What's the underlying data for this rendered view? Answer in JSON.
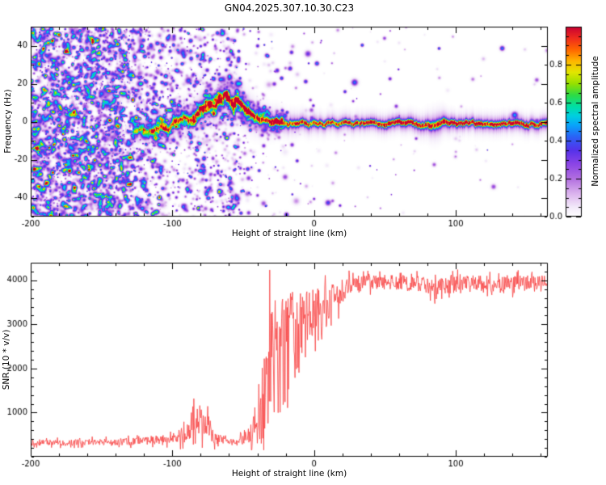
{
  "title": "GN04.2025.307.10.30.C23",
  "chart_data": [
    {
      "type": "heatmap",
      "xlabel": "Height of straight line (km)",
      "ylabel": "Frequency (Hz)",
      "xlim": [
        -200,
        165
      ],
      "ylim": [
        -50,
        50
      ],
      "xticks": [
        -200,
        -100,
        0,
        100
      ],
      "xtick_labels": [
        "-200",
        "-100",
        "0",
        "100"
      ],
      "yticks": [
        -40,
        -20,
        0,
        20,
        40
      ],
      "ytick_labels": [
        "-40",
        "-20",
        "0",
        "20",
        "40"
      ],
      "x_minor_step": 20,
      "y_minor_step": 10,
      "colorbar": {
        "label": "Normalized spectral amplitude",
        "range": [
          0,
          1
        ],
        "ticks": [
          0,
          0.2,
          0.4,
          0.6,
          0.8
        ],
        "tick_labels": [
          "0.0",
          "0.2",
          "0.4",
          "0.6",
          "0.8"
        ],
        "minor_step": 0.05,
        "colormap_stops": [
          [
            0.0,
            "#ffffff"
          ],
          [
            0.05,
            "#f3eafa"
          ],
          [
            0.12,
            "#dcb4ee"
          ],
          [
            0.2,
            "#b26fe0"
          ],
          [
            0.28,
            "#8a43e6"
          ],
          [
            0.35,
            "#5532ea"
          ],
          [
            0.42,
            "#2b62f6"
          ],
          [
            0.48,
            "#09a3fb"
          ],
          [
            0.53,
            "#00cfe0"
          ],
          [
            0.58,
            "#00dfa5"
          ],
          [
            0.64,
            "#2edb44"
          ],
          [
            0.7,
            "#96e000"
          ],
          [
            0.76,
            "#e3e600"
          ],
          [
            0.82,
            "#ffb400"
          ],
          [
            0.88,
            "#ff6400"
          ],
          [
            0.94,
            "#ef2b1e"
          ],
          [
            1.0,
            "#c80032"
          ]
        ]
      },
      "signal_track": {
        "points": [
          [
            -128,
            -5,
            0.45,
            2.0
          ],
          [
            -122,
            -3,
            0.5,
            2.0
          ],
          [
            -117,
            -6,
            0.55,
            2.1
          ],
          [
            -112,
            -4,
            0.55,
            2.1
          ],
          [
            -107,
            -2,
            0.6,
            2.2
          ],
          [
            -103,
            -4,
            0.55,
            2.2
          ],
          [
            -99,
            -1,
            0.6,
            2.3
          ],
          [
            -95,
            0,
            0.62,
            2.3
          ],
          [
            -91,
            2,
            0.6,
            2.4
          ],
          [
            -87,
            1,
            0.65,
            2.5
          ],
          [
            -83,
            4,
            0.65,
            2.5
          ],
          [
            -79,
            6,
            0.68,
            2.6
          ],
          [
            -75,
            9,
            0.68,
            2.7
          ],
          [
            -71,
            8,
            0.7,
            2.7
          ],
          [
            -67,
            11,
            0.72,
            2.8
          ],
          [
            -63,
            13,
            0.72,
            2.8
          ],
          [
            -60,
            11,
            0.72,
            2.8
          ],
          [
            -57,
            9,
            0.75,
            2.8
          ],
          [
            -54,
            11,
            0.75,
            2.7
          ],
          [
            -51,
            8,
            0.78,
            2.6
          ],
          [
            -48,
            6,
            0.78,
            2.5
          ],
          [
            -45,
            5,
            0.78,
            2.4
          ],
          [
            -42,
            3,
            0.76,
            2.3
          ],
          [
            -39,
            2,
            0.76,
            2.2
          ],
          [
            -36,
            1,
            0.76,
            2.1
          ],
          [
            -33,
            1,
            0.75,
            2.0
          ],
          [
            -30,
            0,
            0.78,
            1.9
          ],
          [
            -26,
            0,
            0.8,
            1.8
          ],
          [
            -22,
            0,
            0.78,
            1.7
          ],
          [
            -18,
            -1,
            0.8,
            1.6
          ],
          [
            -14,
            -1,
            0.82,
            1.6
          ],
          [
            -10,
            -1,
            0.8,
            1.5
          ],
          [
            -5,
            -1,
            0.82,
            1.5
          ],
          [
            0,
            -1,
            0.82,
            1.5
          ],
          [
            8,
            -1,
            0.8,
            1.4
          ],
          [
            16,
            -1,
            0.82,
            1.4
          ],
          [
            24,
            -1,
            0.8,
            1.4
          ],
          [
            32,
            -1,
            0.82,
            1.4
          ],
          [
            40,
            -1,
            0.85,
            1.4
          ],
          [
            48,
            -1,
            0.9,
            1.4
          ],
          [
            56,
            -1,
            0.95,
            1.4
          ],
          [
            64,
            -1,
            0.95,
            1.4
          ],
          [
            72,
            -1,
            0.9,
            1.5
          ],
          [
            78,
            -2,
            0.85,
            1.6
          ],
          [
            84,
            -2,
            0.8,
            2.0
          ],
          [
            88,
            -1,
            0.85,
            2.0
          ],
          [
            93,
            -1,
            0.92,
            1.6
          ],
          [
            100,
            -1,
            0.95,
            1.4
          ],
          [
            110,
            -1,
            0.9,
            1.4
          ],
          [
            120,
            -1,
            0.88,
            1.4
          ],
          [
            130,
            -1,
            0.9,
            1.4
          ],
          [
            140,
            -1,
            0.88,
            1.4
          ],
          [
            150,
            -1,
            0.9,
            1.4
          ],
          [
            158,
            -1,
            0.88,
            1.4
          ],
          [
            165,
            -1,
            0.9,
            1.4
          ]
        ]
      },
      "noise_speckle": {
        "amplitude_range": [
          0.05,
          0.5
        ],
        "density_profile": [
          [
            -200,
            0.95
          ],
          [
            -145,
            0.95
          ],
          [
            -132,
            0.7
          ],
          [
            -122,
            0.5
          ],
          [
            -112,
            0.38
          ],
          [
            -100,
            0.32
          ],
          [
            -88,
            0.3
          ],
          [
            -80,
            0.45
          ],
          [
            -74,
            0.3
          ],
          [
            -64,
            0.3
          ],
          [
            -58,
            0.5
          ],
          [
            -52,
            0.22
          ],
          [
            -46,
            0.12
          ],
          [
            -36,
            0.06
          ],
          [
            -20,
            0.03
          ],
          [
            0,
            0.02
          ],
          [
            60,
            0.012
          ],
          [
            165,
            0.01
          ]
        ]
      }
    },
    {
      "type": "line",
      "xlabel": "Height of straight line (km)",
      "ylabel": "SNR (10 * v/v)",
      "xlim": [
        -200,
        165
      ],
      "ylim": [
        0,
        4400
      ],
      "xticks": [
        -200,
        -100,
        0,
        100
      ],
      "xtick_labels": [
        "-200",
        "-100",
        "0",
        "100"
      ],
      "yticks": [
        1000,
        2000,
        3000,
        4000
      ],
      "ytick_labels": [
        "1000",
        "2000",
        "3000",
        "4000"
      ],
      "x_minor_step": 20,
      "y_minor_step": 200,
      "series": [
        {
          "name": "SNR",
          "color": "#f84040",
          "trend_points": [
            [
              -200,
              320,
              70
            ],
            [
              -170,
              320,
              70
            ],
            [
              -145,
              330,
              75
            ],
            [
              -128,
              345,
              85
            ],
            [
              -115,
              365,
              95
            ],
            [
              -105,
              400,
              110
            ],
            [
              -98,
              470,
              160
            ],
            [
              -93,
              540,
              220
            ],
            [
              -88,
              640,
              300
            ],
            [
              -84,
              760,
              380
            ],
            [
              -80,
              830,
              420
            ],
            [
              -77,
              760,
              380
            ],
            [
              -73,
              560,
              240
            ],
            [
              -69,
              430,
              140
            ],
            [
              -64,
              380,
              110
            ],
            [
              -59,
              345,
              90
            ],
            [
              -55,
              330,
              85
            ],
            [
              -51,
              370,
              130
            ],
            [
              -47,
              420,
              180
            ],
            [
              -44,
              520,
              280
            ],
            [
              -41,
              720,
              520
            ],
            [
              -38,
              1150,
              950
            ],
            [
              -35,
              1500,
              1200
            ],
            [
              -32,
              1850,
              1400
            ],
            [
              -29,
              2050,
              1450
            ],
            [
              -26,
              2250,
              1450
            ],
            [
              -23,
              2400,
              1350
            ],
            [
              -20,
              2500,
              1250
            ],
            [
              -17,
              2600,
              1150
            ],
            [
              -14,
              2700,
              1050
            ],
            [
              -11,
              2800,
              950
            ],
            [
              -8,
              2900,
              850
            ],
            [
              -5,
              3000,
              750
            ],
            [
              -2,
              3100,
              700
            ],
            [
              2,
              3200,
              620
            ],
            [
              6,
              3320,
              520
            ],
            [
              10,
              3450,
              430
            ],
            [
              14,
              3580,
              350
            ],
            [
              18,
              3700,
              300
            ],
            [
              22,
              3800,
              250
            ],
            [
              26,
              3870,
              210
            ],
            [
              30,
              3920,
              185
            ],
            [
              38,
              3950,
              170
            ],
            [
              50,
              3960,
              165
            ],
            [
              62,
              3950,
              170
            ],
            [
              74,
              3920,
              180
            ],
            [
              82,
              3860,
              220
            ],
            [
              88,
              3780,
              260
            ],
            [
              93,
              3830,
              220
            ],
            [
              100,
              3920,
              180
            ],
            [
              110,
              3960,
              165
            ],
            [
              122,
              3920,
              180
            ],
            [
              134,
              3890,
              190
            ],
            [
              146,
              3940,
              170
            ],
            [
              156,
              3960,
              165
            ],
            [
              165,
              3950,
              170
            ]
          ]
        }
      ]
    }
  ]
}
